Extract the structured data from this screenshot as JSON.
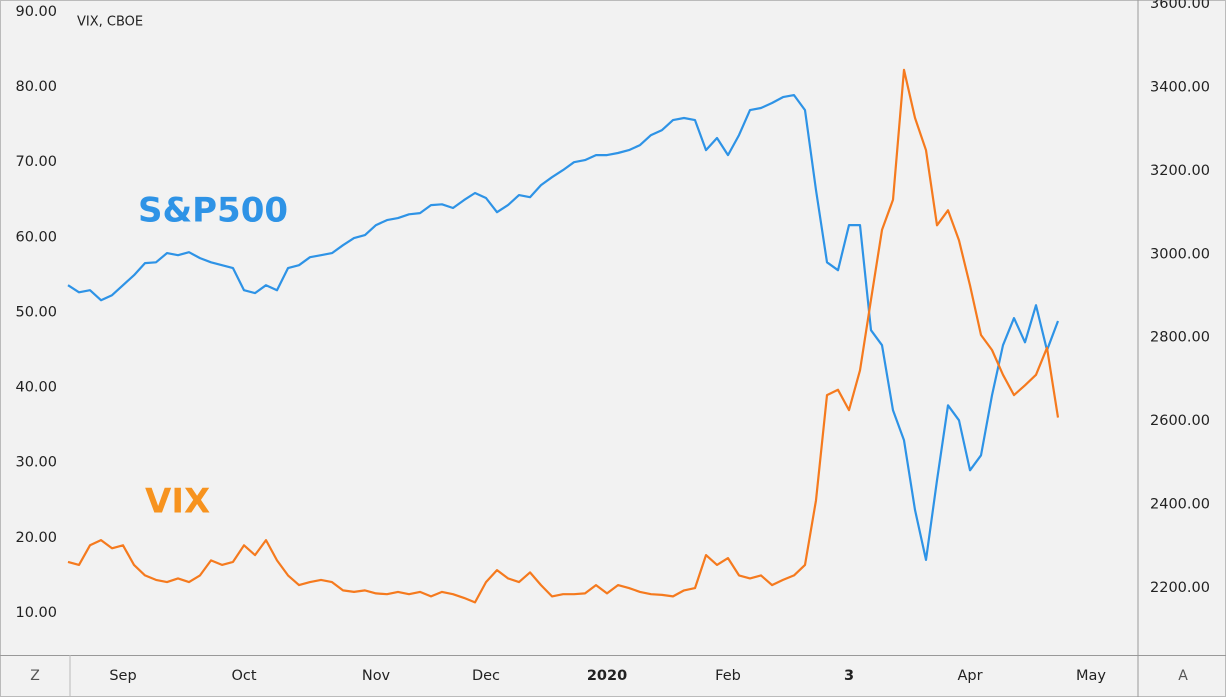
{
  "buttons": [
    "Z",
    "A"
  ],
  "chart_data": {
    "type": "line",
    "title": "VIX, CBOE",
    "categories": [
      null,
      null,
      null,
      null,
      null,
      "Sep",
      null,
      null,
      null,
      null,
      null,
      null,
      null,
      null,
      null,
      null,
      "Oct",
      null,
      null,
      null,
      null,
      null,
      null,
      null,
      null,
      null,
      null,
      null,
      "Nov",
      null,
      null,
      null,
      null,
      null,
      null,
      null,
      null,
      null,
      "Dec",
      null,
      null,
      null,
      null,
      null,
      null,
      null,
      null,
      null,
      null,
      "2020",
      null,
      null,
      null,
      null,
      null,
      null,
      null,
      null,
      null,
      null,
      "Feb",
      null,
      null,
      null,
      null,
      null,
      null,
      null,
      null,
      null,
      null,
      "3",
      null,
      null,
      null,
      null,
      null,
      null,
      null,
      null,
      null,
      null,
      "Apr",
      null,
      null,
      null,
      null,
      null,
      null,
      null,
      null,
      null,
      null,
      "May"
    ],
    "series": [
      {
        "name": "S&P500",
        "color": "#2e93e6",
        "axis": "y2",
        "values": [
          2926,
          2909,
          2914,
          2890,
          2902,
          2926,
          2950,
          2979,
          2981,
          3003,
          2998,
          3005,
          2991,
          2981,
          2974,
          2967,
          2914,
          2907,
          2926,
          2914,
          2967,
          2974,
          2993,
          2998,
          3003,
          3022,
          3039,
          3046,
          3070,
          3082,
          3087,
          3096,
          3099,
          3118,
          3120,
          3111,
          3130,
          3147,
          3135,
          3101,
          3118,
          3142,
          3137,
          3166,
          3185,
          3202,
          3221,
          3226,
          3238,
          3238,
          3243,
          3250,
          3262,
          3286,
          3298,
          3322,
          3327,
          3322,
          3250,
          3279,
          3238,
          3286,
          3346,
          3351,
          3363,
          3377,
          3382,
          3346,
          3154,
          2981,
          2962,
          3070,
          3070,
          2818,
          2782,
          2626,
          2554,
          2387,
          2267,
          2458,
          2638,
          2602,
          2482,
          2518,
          2662,
          2782,
          2847,
          2789,
          2878,
          2770,
          2840,
          null,
          null,
          null
        ]
      },
      {
        "name": "VIX",
        "color": "#f57a1e",
        "values": [
          16.8,
          16.4,
          19.0,
          19.7,
          18.6,
          19.0,
          16.4,
          15.0,
          14.4,
          14.1,
          14.6,
          14.1,
          15.0,
          17.0,
          16.4,
          16.8,
          19.0,
          17.7,
          19.7,
          17.0,
          15.0,
          13.7,
          14.1,
          14.4,
          14.1,
          13.0,
          12.8,
          13.0,
          12.6,
          12.5,
          12.8,
          12.5,
          12.8,
          12.2,
          12.8,
          12.5,
          12.0,
          11.4,
          14.1,
          15.7,
          14.6,
          14.1,
          15.4,
          13.7,
          12.2,
          12.5,
          12.5,
          12.6,
          13.7,
          12.6,
          13.7,
          13.3,
          12.8,
          12.5,
          12.4,
          12.2,
          13.0,
          13.3,
          17.7,
          16.4,
          17.3,
          15.0,
          14.6,
          15.0,
          13.7,
          14.4,
          15.0,
          16.4,
          25.0,
          39.0,
          39.7,
          37.0,
          42.3,
          51.7,
          61.0,
          65.0,
          82.3,
          75.9,
          71.6,
          61.6,
          63.6,
          59.6,
          53.6,
          47.0,
          45.0,
          41.7,
          39.0,
          40.3,
          41.7,
          45.3,
          36.0,
          null,
          null,
          null
        ]
      }
    ],
    "ylim": [
      4.4,
      91.6
    ],
    "yticks": [
      {
        "value": 10,
        "label": "10.00"
      },
      {
        "value": 20,
        "label": "20.00"
      },
      {
        "value": 30,
        "label": "30.00"
      },
      {
        "value": 40,
        "label": "40.00"
      },
      {
        "value": 50,
        "label": "50.00"
      },
      {
        "value": 60,
        "label": "60.00"
      },
      {
        "value": 70,
        "label": "70.00"
      },
      {
        "value": 80,
        "label": "80.00"
      },
      {
        "value": 90,
        "label": "90.00"
      }
    ],
    "y2lim": [
      2039,
      3610
    ],
    "y2ticks": [
      {
        "value": 2200,
        "label": "2200.00"
      },
      {
        "value": 2400,
        "label": "2400.00"
      },
      {
        "value": 2600,
        "label": "2600.00"
      },
      {
        "value": 2800,
        "label": "2800.00"
      },
      {
        "value": 3000,
        "label": "3000.00"
      },
      {
        "value": 3200,
        "label": "3200.00"
      },
      {
        "value": 3400,
        "label": "3400.00"
      },
      {
        "value": 3600,
        "label": "3600.00"
      }
    ],
    "grid": false
  }
}
